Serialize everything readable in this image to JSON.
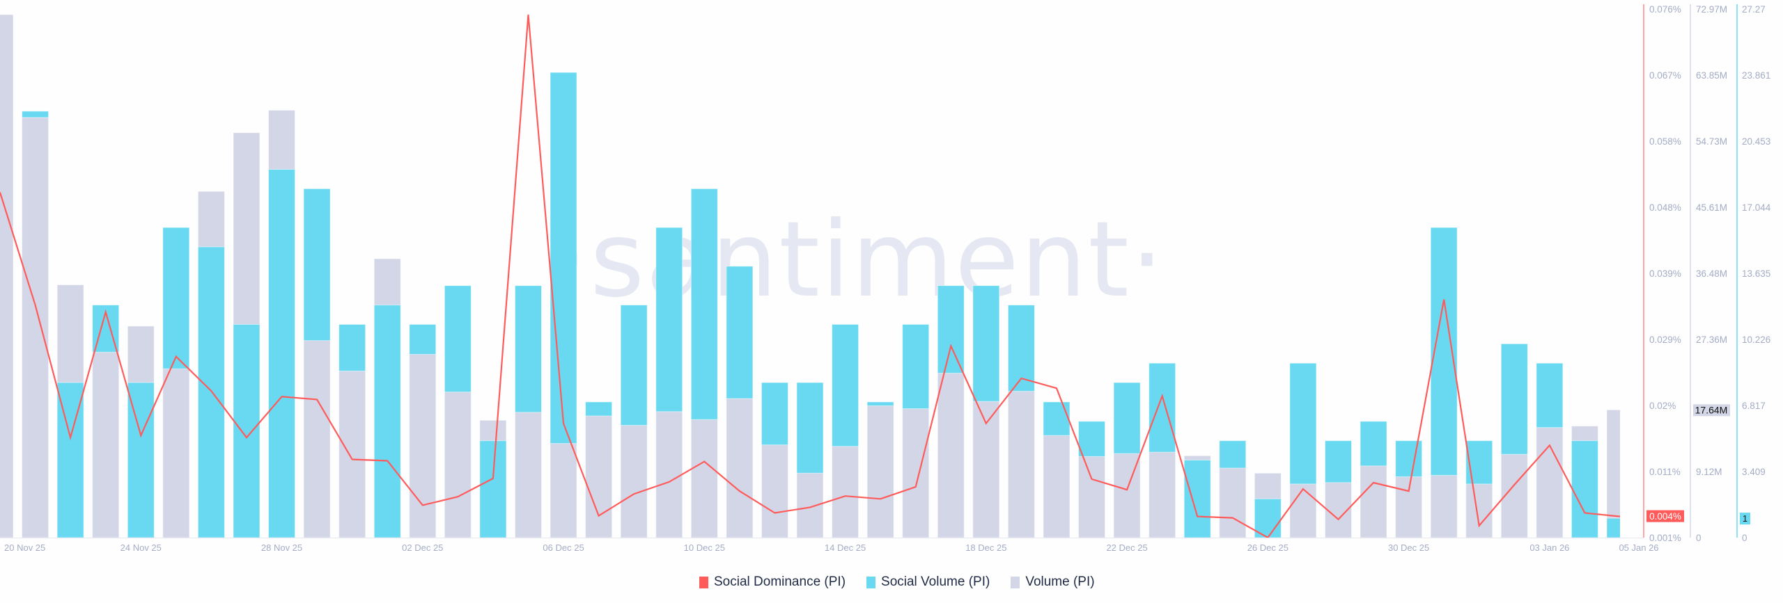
{
  "chart_data": {
    "type": "bar",
    "watermark": "·santiment·",
    "x": [
      "20 Nov 25",
      "21 Nov 25",
      "22 Nov 25",
      "23 Nov 25",
      "24 Nov 25",
      "25 Nov 25",
      "26 Nov 25",
      "27 Nov 25",
      "28 Nov 25",
      "29 Nov 25",
      "30 Nov 25",
      "01 Dec 25",
      "02 Dec 25",
      "03 Dec 25",
      "04 Dec 25",
      "05 Dec 25",
      "06 Dec 25",
      "07 Dec 25",
      "08 Dec 25",
      "09 Dec 25",
      "10 Dec 25",
      "11 Dec 25",
      "12 Dec 25",
      "13 Dec 25",
      "14 Dec 25",
      "15 Dec 25",
      "16 Dec 25",
      "17 Dec 25",
      "18 Dec 25",
      "19 Dec 25",
      "20 Dec 25",
      "21 Dec 25",
      "22 Dec 25",
      "23 Dec 25",
      "24 Dec 25",
      "25 Dec 25",
      "26 Dec 25",
      "27 Dec 25",
      "28 Dec 25",
      "29 Dec 25",
      "30 Dec 25",
      "31 Dec 25",
      "01 Jan 26",
      "02 Jan 26",
      "03 Jan 26",
      "04 Jan 26",
      "05 Jan 26"
    ],
    "x_tick_labels": [
      "20 Nov 25",
      "24 Nov 25",
      "28 Nov 25",
      "02 Dec 25",
      "06 Dec 25",
      "10 Dec 25",
      "14 Dec 25",
      "18 Dec 25",
      "22 Dec 25",
      "26 Dec 25",
      "30 Dec 25",
      "03 Jan 26",
      "05 Jan 26"
    ],
    "series": [
      {
        "name": "Social Dominance (PI)",
        "type": "line",
        "axis": "dominance",
        "unit": "%",
        "color": "#ff5b5b",
        "values": [
          0.05,
          0.034,
          0.0152,
          0.033,
          0.0155,
          0.0267,
          0.0218,
          0.0152,
          0.021,
          0.0206,
          0.0121,
          0.0119,
          0.0056,
          0.0068,
          0.0094,
          0.0752,
          0.0172,
          0.0041,
          0.0072,
          0.0089,
          0.0118,
          0.0076,
          0.0045,
          0.0053,
          0.0069,
          0.0065,
          0.0082,
          0.0282,
          0.0172,
          0.0236,
          0.0222,
          0.0093,
          0.0078,
          0.0211,
          0.004,
          0.0038,
          0.001,
          0.0079,
          0.0036,
          0.0088,
          0.0076,
          0.0348,
          0.0027,
          0.0085,
          0.0141,
          0.0045,
          0.004
        ]
      },
      {
        "name": "Social Volume (PI)",
        "type": "bar",
        "axis": "social_volume",
        "color": "#68d9f1",
        "values": [
          0,
          22,
          8,
          12,
          8,
          16,
          15,
          11,
          19,
          18,
          11,
          12,
          11,
          13,
          5,
          13,
          24,
          7,
          12,
          16,
          18,
          14,
          8,
          8,
          11,
          7,
          11,
          13,
          13,
          12,
          7,
          6,
          8,
          9,
          4,
          5,
          2,
          9,
          5,
          6,
          5,
          16,
          5,
          10,
          9,
          5,
          1
        ]
      },
      {
        "name": "Volume (PI)",
        "type": "bar",
        "axis": "volume",
        "unit": "M",
        "color": "#d3d6e6",
        "values": [
          72.2,
          58.0,
          34.9,
          25.6,
          29.2,
          23.3,
          47.8,
          55.9,
          59.0,
          27.2,
          23.0,
          38.5,
          25.3,
          20.1,
          16.2,
          17.3,
          13.0,
          16.8,
          15.5,
          17.4,
          16.3,
          19.2,
          12.8,
          8.9,
          12.6,
          18.2,
          17.8,
          22.7,
          18.8,
          20.2,
          14.1,
          11.2,
          11.6,
          11.8,
          11.3,
          9.6,
          8.9,
          7.4,
          7.6,
          9.9,
          8.4,
          8.6,
          7.4,
          11.5,
          15.2,
          15.4,
          17.64
        ]
      }
    ],
    "axes": {
      "dominance": {
        "range": [
          0.001,
          0.076
        ],
        "ticks": [
          "0.076%",
          "0.067%",
          "0.058%",
          "0.048%",
          "0.039%",
          "0.029%",
          "0.02%",
          "0.011%",
          "0.001%"
        ],
        "color": "#ff5b5b",
        "current_label": "0.004%"
      },
      "volume": {
        "range": [
          0,
          72.97
        ],
        "ticks": [
          "72.97M",
          "63.85M",
          "54.73M",
          "45.61M",
          "36.48M",
          "27.36M",
          "",
          "9.12M",
          "0"
        ],
        "color": "#d3d6e6",
        "current_label": "17.64M"
      },
      "social_volume": {
        "range": [
          0,
          27.27
        ],
        "ticks": [
          "27.27",
          "23.861",
          "20.453",
          "17.044",
          "13.635",
          "10.226",
          "6.817",
          "3.409",
          "0"
        ],
        "color": "#68d9f1",
        "current_label": "1"
      }
    },
    "grid": false,
    "legend_position": "bottom-center"
  },
  "legend": {
    "items": [
      {
        "label": "Social Dominance (PI)",
        "color": "#ff5b5b"
      },
      {
        "label": "Social Volume (PI)",
        "color": "#68d9f1"
      },
      {
        "label": "Volume (PI)",
        "color": "#d3d6e6"
      }
    ]
  }
}
